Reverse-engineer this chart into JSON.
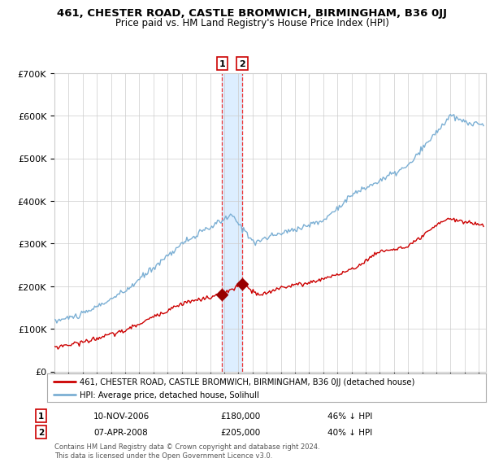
{
  "title": "461, CHESTER ROAD, CASTLE BROMWICH, BIRMINGHAM, B36 0JJ",
  "subtitle": "Price paid vs. HM Land Registry's House Price Index (HPI)",
  "legend_line1": "461, CHESTER ROAD, CASTLE BROMWICH, BIRMINGHAM, B36 0JJ (detached house)",
  "legend_line2": "HPI: Average price, detached house, Solihull",
  "transaction1_label": "1",
  "transaction1_date": "10-NOV-2006",
  "transaction1_price": 180000,
  "transaction1_hpi_pct": "46% ↓ HPI",
  "transaction2_label": "2",
  "transaction2_date": "07-APR-2008",
  "transaction2_price": 205000,
  "transaction2_hpi_pct": "40% ↓ HPI",
  "transaction1_year": 2006.86,
  "transaction2_year": 2008.27,
  "hpi_color": "#7bafd4",
  "price_color": "#cc0000",
  "marker_color": "#990000",
  "vline_color": "#ee3333",
  "vband_color": "#ddeeff",
  "grid_color": "#cccccc",
  "background_color": "#ffffff",
  "footer": "Contains HM Land Registry data © Crown copyright and database right 2024.\nThis data is licensed under the Open Government Licence v3.0.",
  "ylim": [
    0,
    700000
  ],
  "xlim_start": 1995.0,
  "xlim_end": 2025.5
}
